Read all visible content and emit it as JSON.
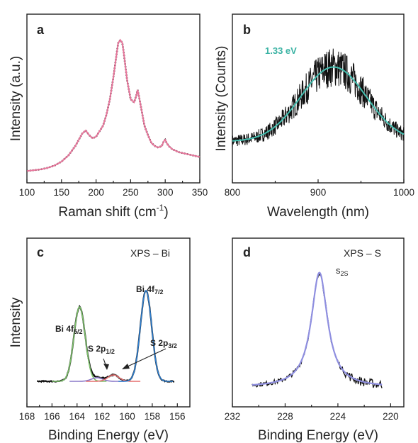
{
  "colors": {
    "raw": "#111111",
    "raman_fit": "#e8779c",
    "pl_fit": "#43bfb0",
    "pl_label": "#3bb3a4",
    "bi52": "#7cc06a",
    "s12": "#8a78c8",
    "s32": "#e56f6f",
    "bi72": "#2f7fd0",
    "xps_s_fit": "#8f8fe0"
  },
  "chart_data": [
    {
      "id": "a",
      "type": "line",
      "panel_label": "a",
      "xlabel": "Raman shift (cm",
      "xlabel_sup": "-1",
      "xlabel_end": ")",
      "ylabel": "Intensity (a.u.)",
      "xlim": [
        100,
        350
      ],
      "ylim": [
        0,
        1
      ],
      "xticks": [
        "100",
        "150",
        "200",
        "250",
        "300",
        "350"
      ],
      "xtick_values": [
        100,
        150,
        200,
        250,
        300,
        350
      ],
      "series": [
        {
          "role": "raw_dotted",
          "x": [
            100,
            110,
            120,
            130,
            140,
            150,
            160,
            170,
            175,
            180,
            185,
            190,
            195,
            200,
            210,
            215,
            220,
            225,
            230,
            232,
            235,
            238,
            240,
            245,
            250,
            255,
            258,
            260,
            262,
            265,
            270,
            275,
            280,
            285,
            290,
            295,
            298,
            300,
            302,
            305,
            310,
            315,
            320,
            330,
            340,
            350
          ],
          "y": [
            0.04,
            0.045,
            0.05,
            0.06,
            0.075,
            0.1,
            0.14,
            0.2,
            0.24,
            0.28,
            0.3,
            0.27,
            0.25,
            0.26,
            0.33,
            0.4,
            0.5,
            0.64,
            0.8,
            0.86,
            0.88,
            0.86,
            0.8,
            0.62,
            0.5,
            0.48,
            0.52,
            0.56,
            0.52,
            0.45,
            0.33,
            0.27,
            0.22,
            0.2,
            0.19,
            0.2,
            0.23,
            0.24,
            0.22,
            0.2,
            0.18,
            0.17,
            0.16,
            0.15,
            0.14,
            0.13
          ]
        },
        {
          "role": "fit",
          "x": [
            100,
            110,
            120,
            130,
            140,
            150,
            160,
            170,
            175,
            180,
            185,
            190,
            195,
            200,
            210,
            215,
            220,
            225,
            230,
            232,
            235,
            238,
            240,
            245,
            250,
            255,
            258,
            260,
            262,
            265,
            270,
            275,
            280,
            285,
            290,
            295,
            298,
            300,
            302,
            305,
            310,
            315,
            320,
            330,
            340,
            350
          ],
          "y": [
            0.04,
            0.045,
            0.05,
            0.06,
            0.075,
            0.1,
            0.14,
            0.2,
            0.24,
            0.28,
            0.3,
            0.27,
            0.25,
            0.26,
            0.33,
            0.4,
            0.5,
            0.64,
            0.8,
            0.86,
            0.88,
            0.86,
            0.8,
            0.62,
            0.5,
            0.48,
            0.52,
            0.56,
            0.52,
            0.45,
            0.33,
            0.27,
            0.22,
            0.2,
            0.19,
            0.2,
            0.23,
            0.24,
            0.22,
            0.2,
            0.18,
            0.17,
            0.16,
            0.15,
            0.14,
            0.13
          ]
        }
      ]
    },
    {
      "id": "b",
      "type": "line",
      "panel_label": "b",
      "xlabel": "Wavelength (nm)",
      "ylabel": "Intensity (Counts)",
      "xlim": [
        800,
        1000
      ],
      "ylim": [
        0,
        1
      ],
      "xticks": [
        "800",
        "900",
        "1000"
      ],
      "xtick_values": [
        800,
        900,
        1000
      ],
      "annotation": "1.33 eV",
      "peak_nm": 918,
      "fit": {
        "center": 918,
        "sigma": 38,
        "baseline": 0.24,
        "amplitude": 0.5
      },
      "noise_amplitude": 0.08
    },
    {
      "id": "c",
      "type": "line",
      "panel_label": "c",
      "corner_label": "XPS – Bi",
      "xlabel": "Binding Energy (eV)",
      "ylabel": "Intensity",
      "xlim": [
        168,
        155
      ],
      "ylim": [
        0,
        1
      ],
      "xticks": [
        "168",
        "166",
        "164",
        "162",
        "160",
        "158",
        "156"
      ],
      "xtick_values": [
        168,
        166,
        164,
        162,
        160,
        158,
        156
      ],
      "peaks": [
        {
          "name": "Bi 4f5/2",
          "center": 163.8,
          "height": 0.82,
          "width": 0.45
        },
        {
          "name": "S 2p1/2",
          "center": 162.4,
          "height": 0.04,
          "width": 0.45
        },
        {
          "name": "S 2p3/2",
          "center": 161.1,
          "height": 0.07,
          "width": 0.45
        },
        {
          "name": "Bi 4f7/2",
          "center": 158.5,
          "height": 1.0,
          "width": 0.45
        }
      ],
      "labels": {
        "bi52": "Bi 4f",
        "bi52_sub": "5/2",
        "s12": "S 2p",
        "s12_sub": "1/2",
        "s32": "S 2p",
        "s32_sub": "3/2",
        "bi72": "Bi 4f",
        "bi72_sub": "7/2"
      }
    },
    {
      "id": "d",
      "type": "line",
      "panel_label": "d",
      "corner_label": "XPS – S",
      "xlabel": "Binding Energy (eV)",
      "xlim": [
        232,
        219
      ],
      "ylim": [
        0,
        1
      ],
      "xticks": [
        "232",
        "228",
        "224",
        "220"
      ],
      "xtick_values": [
        232,
        228,
        224,
        220
      ],
      "peak_label": "s",
      "peak_label_sub": "2S",
      "fit": {
        "center": 225.4,
        "gamma": 0.75,
        "amplitude": 0.88,
        "baseline": 0.03
      }
    }
  ]
}
